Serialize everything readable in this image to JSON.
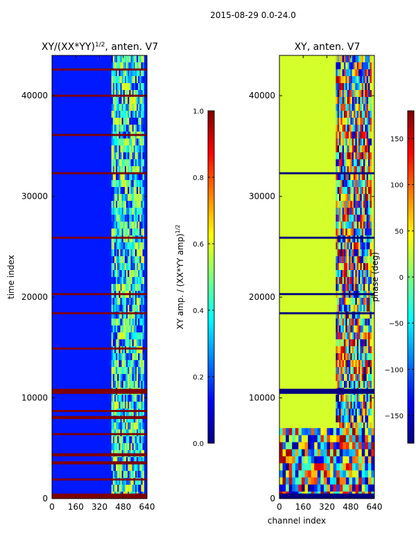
{
  "figure": {
    "suptitle": "2015-08-29 0.0-24.0",
    "colormap": [
      "#00007f",
      "#0000ff",
      "#007fff",
      "#00ffff",
      "#7fff7f",
      "#ffff00",
      "#ff7f00",
      "#ff0000",
      "#7f0000"
    ]
  },
  "chart_data": [
    {
      "type": "heatmap",
      "title_main": "XY/(XX*YY)",
      "title_exp": "1/2",
      "title_tail": ", anten. V7",
      "xlabel": "",
      "ylabel": "time index",
      "xlim": [
        0,
        640
      ],
      "ylim": [
        0,
        44000
      ],
      "xticks": [
        0,
        160,
        320,
        480,
        640
      ],
      "xtick_labels": [
        "0",
        "160",
        "320",
        "480",
        "640"
      ],
      "yticks": [
        0,
        10000,
        20000,
        30000,
        40000
      ],
      "ytick_labels": [
        "0",
        "10000",
        "20000",
        "30000",
        "40000"
      ],
      "colorbar": {
        "label_main": "XY amp. / (XX*YY amp)",
        "label_exp": "1/2",
        "range": [
          0.0,
          1.0
        ],
        "ticks": [
          0.0,
          0.2,
          0.4,
          0.6,
          0.8,
          1.0
        ],
        "tick_labels": [
          "0.0",
          "0.2",
          "0.4",
          "0.6",
          "0.8",
          "1.0"
        ]
      },
      "background_value": 0.15,
      "active_channel_range": [
        400,
        620
      ],
      "flagged_rows": [
        {
          "t0": 0,
          "t1": 500,
          "value": 1.0
        },
        {
          "t0": 1800,
          "t1": 2000,
          "value": 1.0
        },
        {
          "t0": 3400,
          "t1": 3700,
          "value": 1.0
        },
        {
          "t0": 4200,
          "t1": 4500,
          "value": 1.0
        },
        {
          "t0": 6300,
          "t1": 6500,
          "value": 1.0
        },
        {
          "t0": 7900,
          "t1": 8200,
          "value": 1.0
        },
        {
          "t0": 8600,
          "t1": 8800,
          "value": 1.0
        },
        {
          "t0": 10400,
          "t1": 10900,
          "value": 1.0
        },
        {
          "t0": 14800,
          "t1": 15000,
          "value": 1.0
        },
        {
          "t0": 18300,
          "t1": 18500,
          "value": 1.0
        },
        {
          "t0": 20200,
          "t1": 20400,
          "value": 1.0
        },
        {
          "t0": 25800,
          "t1": 26000,
          "value": 1.0
        },
        {
          "t0": 32200,
          "t1": 32400,
          "value": 1.0
        },
        {
          "t0": 36000,
          "t1": 36200,
          "value": 1.0
        },
        {
          "t0": 39900,
          "t1": 40100,
          "value": 1.0
        },
        {
          "t0": 42500,
          "t1": 42700,
          "value": 1.0
        }
      ]
    },
    {
      "type": "heatmap",
      "title_main": "XY, anten. V7",
      "xlabel": "channel index",
      "ylabel": "",
      "xlim": [
        0,
        640
      ],
      "ylim": [
        0,
        44000
      ],
      "xticks": [
        0,
        160,
        320,
        480,
        640
      ],
      "xtick_labels": [
        "0",
        "160",
        "320",
        "480",
        "640"
      ],
      "yticks": [
        0,
        10000,
        20000,
        30000,
        40000
      ],
      "ytick_labels": [
        "0",
        "10000",
        "20000",
        "30000",
        "40000"
      ],
      "colorbar": {
        "label_main": "phase (deg)",
        "range": [
          -180,
          180
        ],
        "ticks": [
          -150,
          -100,
          -50,
          0,
          50,
          100,
          150
        ],
        "tick_labels": [
          "−150",
          "−100",
          "−50",
          "0",
          "50",
          "100",
          "150"
        ]
      },
      "background_value": 30,
      "active_channel_range": [
        380,
        620
      ],
      "flagged_rows": [
        {
          "t0": 0,
          "t1": 500,
          "value": -180
        },
        {
          "t0": 10400,
          "t1": 10900,
          "value": -180
        },
        {
          "t0": 18300,
          "t1": 18500,
          "value": -180
        },
        {
          "t0": 20200,
          "t1": 20400,
          "value": -180
        },
        {
          "t0": 25800,
          "t1": 26000,
          "value": -180
        },
        {
          "t0": 32200,
          "t1": 32400,
          "value": -180
        }
      ]
    }
  ]
}
